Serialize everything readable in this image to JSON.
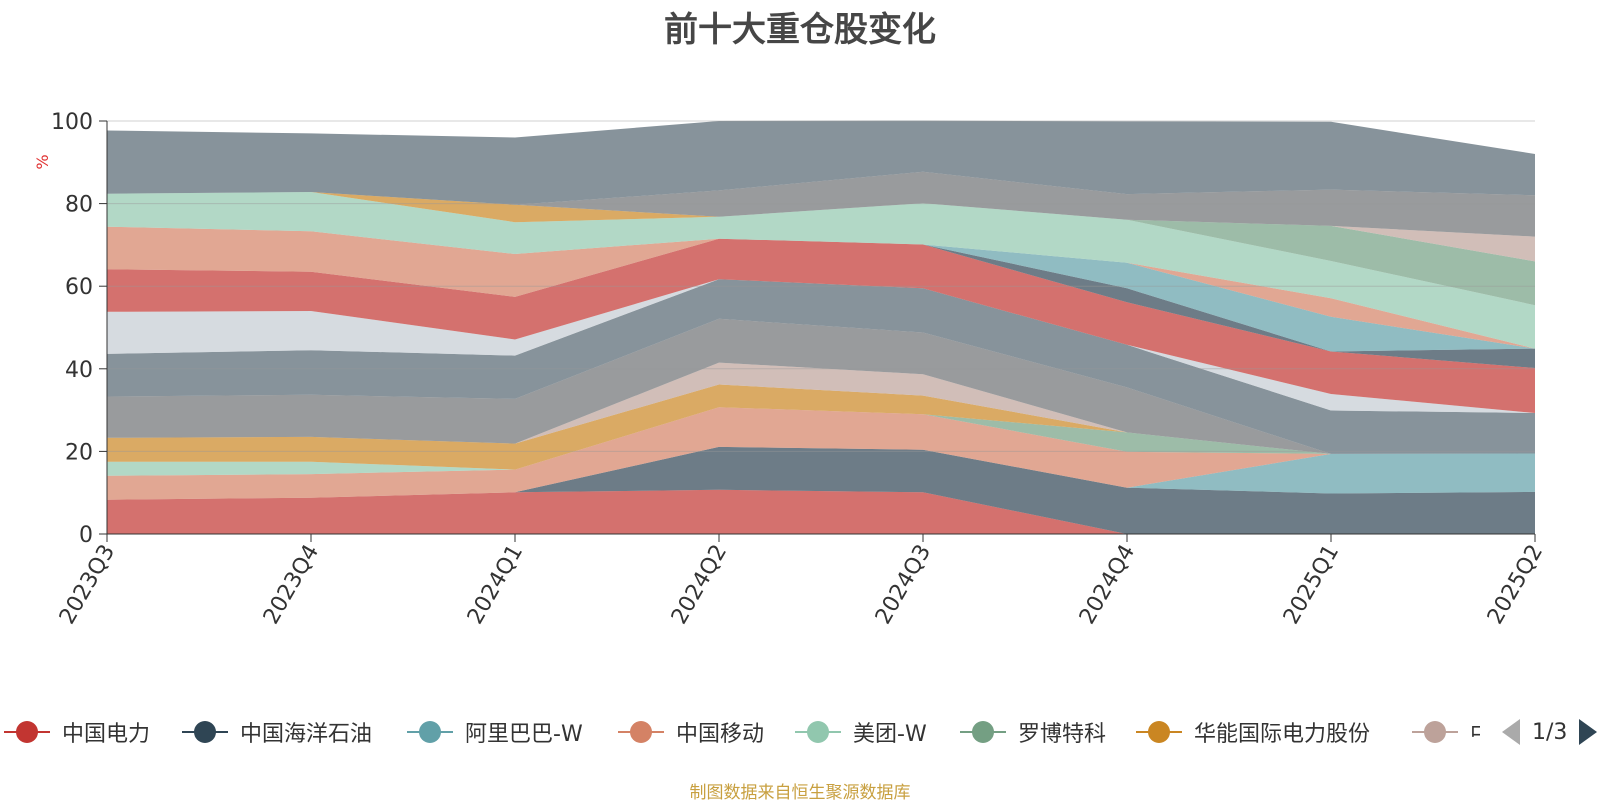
{
  "chart_data": {
    "type": "area",
    "stacked": true,
    "title": "前十大重仓股变化",
    "ylabel": "%",
    "ylim": [
      0,
      100
    ],
    "yticks": [
      0,
      20,
      40,
      60,
      80,
      100
    ],
    "x": [
      "2023Q3",
      "2023Q4",
      "2024Q1",
      "2024Q2",
      "2024Q3",
      "2024Q4",
      "2025Q1",
      "2025Q2"
    ],
    "series": [
      {
        "name": "中国电力",
        "color": "#c23531",
        "values": [
          8.3,
          8.8,
          10.1,
          10.7,
          10.1,
          0.0,
          0.0,
          0.0
        ]
      },
      {
        "name": "中国海洋石油",
        "color": "#2f4554",
        "values": [
          0.0,
          0.0,
          0.0,
          10.4,
          10.3,
          11.2,
          9.8,
          10.2
        ]
      },
      {
        "name": "阿里巴巴-W",
        "color": "#61a0a8",
        "values": [
          0.0,
          0.0,
          0.0,
          0.0,
          0.0,
          0.0,
          9.6,
          9.3
        ]
      },
      {
        "name": "中国移动",
        "color": "#d48265",
        "values": [
          5.8,
          5.7,
          5.5,
          9.6,
          8.6,
          8.7,
          0.0,
          0.0
        ]
      },
      {
        "name": "美团-W",
        "color": "#91c7ae",
        "values": [
          3.4,
          3.0,
          0.0,
          0.0,
          0.0,
          0.0,
          0.0,
          0.0
        ]
      },
      {
        "name": "罗博特科",
        "color": "#749f83",
        "values": [
          0.0,
          0.0,
          0.0,
          0.0,
          0.0,
          4.7,
          0.0,
          0.0
        ]
      },
      {
        "name": "华能国际电力股份",
        "color": "#ca8622",
        "values": [
          5.8,
          6.0,
          6.3,
          5.5,
          4.5,
          0.0,
          0.0,
          0.0
        ]
      },
      {
        "name": "中",
        "color": "#bda29a",
        "values": [
          0.0,
          0.0,
          0.0,
          5.3,
          5.2,
          0.0,
          0.0,
          0.0
        ]
      },
      {
        "name": "",
        "color": "#6e7074",
        "values": [
          10.0,
          10.2,
          10.8,
          10.6,
          10.1,
          10.9,
          0.0,
          0.0
        ]
      },
      {
        "name": "",
        "color": "#546570",
        "values": [
          10.3,
          10.8,
          10.5,
          9.6,
          10.7,
          10.3,
          10.5,
          9.8
        ]
      },
      {
        "name": "",
        "color": "#c4ccd3",
        "values": [
          10.2,
          9.5,
          3.9,
          0.0,
          0.0,
          0.0,
          4.0,
          0.0
        ]
      },
      {
        "name": "",
        "color": "#c23531",
        "values": [
          10.3,
          9.5,
          10.3,
          9.8,
          10.6,
          10.3,
          10.3,
          10.9
        ]
      },
      {
        "name": "",
        "color": "#2f4554",
        "values": [
          0.0,
          0.0,
          0.0,
          0.0,
          0.0,
          3.4,
          0.0,
          4.7
        ]
      },
      {
        "name": "",
        "color": "#61a0a8",
        "values": [
          0.0,
          0.0,
          0.0,
          0.0,
          0.0,
          6.2,
          8.4,
          0.0
        ]
      },
      {
        "name": "",
        "color": "#d48265",
        "values": [
          10.3,
          9.8,
          10.4,
          0.0,
          0.0,
          0.0,
          4.5,
          0.0
        ]
      },
      {
        "name": "",
        "color": "#91c7ae",
        "values": [
          8.0,
          9.5,
          7.7,
          5.3,
          10.0,
          10.4,
          9.0,
          10.5
        ]
      },
      {
        "name": "",
        "color": "#749f83",
        "values": [
          0.0,
          0.0,
          0.0,
          0.0,
          0.0,
          0.0,
          8.5,
          10.6
        ]
      },
      {
        "name": "",
        "color": "#ca8622",
        "values": [
          0.0,
          0.0,
          4.2,
          0.0,
          0.0,
          0.0,
          0.0,
          0.0
        ]
      },
      {
        "name": "",
        "color": "#bda29a",
        "values": [
          0.0,
          0.0,
          0.0,
          0.0,
          0.0,
          0.0,
          0.0,
          6.0
        ]
      },
      {
        "name": "",
        "color": "#6e7074",
        "values": [
          0.0,
          0.0,
          0.0,
          6.4,
          7.6,
          6.2,
          8.8,
          10.0
        ]
      },
      {
        "name": "",
        "color": "#546570",
        "values": [
          15.3,
          14.2,
          16.3,
          16.8,
          12.4,
          17.6,
          16.4,
          10.0
        ]
      }
    ]
  },
  "legend": {
    "page_indicator": "1/3"
  },
  "source_note": "制图数据来自恒生聚源数据库"
}
